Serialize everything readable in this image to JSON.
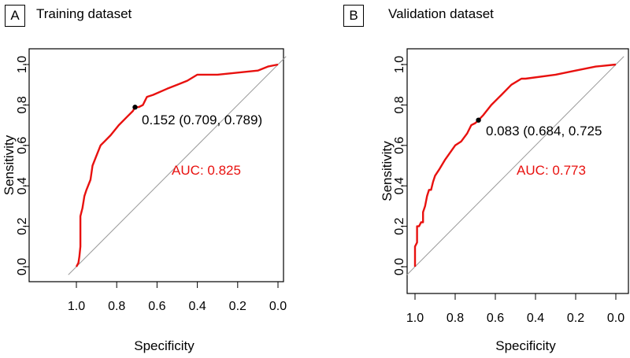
{
  "chart_data": [
    {
      "type": "line",
      "panel_label": "A",
      "title": "Training dataset",
      "xlabel": "Specificity",
      "ylabel": "Sensitivity",
      "xlim": [
        1.0,
        0.0
      ],
      "ylim": [
        0.0,
        1.0
      ],
      "x_ticks": [
        "1.0",
        "0.8",
        "0.6",
        "0.4",
        "0.2",
        "0.0"
      ],
      "y_ticks": [
        "0.0",
        "0.2",
        "0.4",
        "0.6",
        "0.8",
        "1.0"
      ],
      "x_tick_values": [
        1.0,
        0.8,
        0.6,
        0.4,
        0.2,
        0.0
      ],
      "y_tick_values": [
        0.0,
        0.2,
        0.4,
        0.6,
        0.8,
        1.0
      ],
      "series": [
        {
          "name": "ROC",
          "color": "#e8110f",
          "specificity": [
            1.0,
            0.99,
            0.985,
            0.98,
            0.98,
            0.975,
            0.97,
            0.96,
            0.95,
            0.93,
            0.92,
            0.9,
            0.88,
            0.86,
            0.83,
            0.79,
            0.75,
            0.72,
            0.709,
            0.69,
            0.67,
            0.66,
            0.65,
            0.62,
            0.55,
            0.5,
            0.45,
            0.4,
            0.3,
            0.2,
            0.1,
            0.05,
            0.0
          ],
          "sensitivity": [
            0.0,
            0.02,
            0.05,
            0.1,
            0.25,
            0.27,
            0.29,
            0.35,
            0.38,
            0.43,
            0.5,
            0.55,
            0.6,
            0.62,
            0.65,
            0.7,
            0.74,
            0.77,
            0.789,
            0.79,
            0.8,
            0.82,
            0.84,
            0.85,
            0.88,
            0.9,
            0.92,
            0.95,
            0.95,
            0.96,
            0.97,
            0.99,
            1.0
          ]
        }
      ],
      "reference_line": {
        "from": [
          1.0,
          0.0
        ],
        "to": [
          0.0,
          1.0
        ],
        "color": "#9a9a9a"
      },
      "threshold_point": {
        "specificity": 0.709,
        "sensitivity": 0.789,
        "label": "0.152 (0.709, 0.789)"
      },
      "auc_text": "AUC: 0.825",
      "auc_color": "#e8110f"
    },
    {
      "type": "line",
      "panel_label": "B",
      "title": "Validation dataset",
      "xlabel": "Specificity",
      "ylabel": "Sensitivity",
      "xlim": [
        1.0,
        0.0
      ],
      "ylim": [
        0.0,
        1.0
      ],
      "x_ticks": [
        "1.0",
        "0.8",
        "0.6",
        "0.4",
        "0.2",
        "0.0"
      ],
      "y_ticks": [
        "0.0",
        "0.2",
        "0.4",
        "0.6",
        "0.8",
        "1.0"
      ],
      "x_tick_values": [
        1.0,
        0.8,
        0.6,
        0.4,
        0.2,
        0.0
      ],
      "y_tick_values": [
        0.0,
        0.2,
        0.4,
        0.6,
        0.8,
        1.0
      ],
      "series": [
        {
          "name": "ROC",
          "color": "#e8110f",
          "specificity": [
            1.0,
            1.0,
            0.99,
            0.99,
            0.98,
            0.97,
            0.96,
            0.96,
            0.95,
            0.94,
            0.93,
            0.92,
            0.91,
            0.9,
            0.88,
            0.85,
            0.8,
            0.77,
            0.74,
            0.72,
            0.7,
            0.684,
            0.66,
            0.62,
            0.57,
            0.52,
            0.47,
            0.45,
            0.3,
            0.2,
            0.1,
            0.0
          ],
          "sensitivity": [
            0.0,
            0.1,
            0.12,
            0.2,
            0.2,
            0.22,
            0.22,
            0.27,
            0.3,
            0.35,
            0.38,
            0.38,
            0.42,
            0.45,
            0.48,
            0.53,
            0.6,
            0.62,
            0.66,
            0.7,
            0.71,
            0.725,
            0.75,
            0.8,
            0.85,
            0.9,
            0.93,
            0.93,
            0.95,
            0.97,
            0.99,
            1.0
          ]
        }
      ],
      "reference_line": {
        "from": [
          1.0,
          0.0
        ],
        "to": [
          0.0,
          1.0
        ],
        "color": "#9a9a9a"
      },
      "threshold_point": {
        "specificity": 0.684,
        "sensitivity": 0.725,
        "label": "0.083 (0.684, 0.725"
      },
      "auc_text": "AUC: 0.773",
      "auc_color": "#e8110f"
    }
  ]
}
